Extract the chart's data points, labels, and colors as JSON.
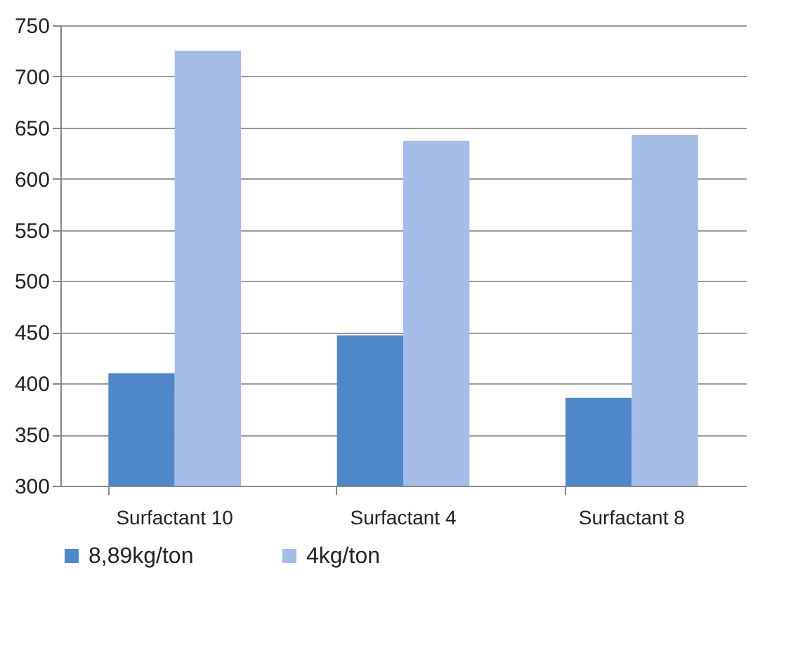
{
  "chart_data": {
    "type": "bar",
    "categories": [
      "Surfactant 10",
      "Surfactant 4",
      "Surfactant 8"
    ],
    "series": [
      {
        "name": "8,89kg/ton",
        "color": "#4f87c8",
        "values": [
          410,
          447,
          386
        ]
      },
      {
        "name": "4kg/ton",
        "color": "#a4bde6",
        "values": [
          725,
          637,
          643
        ]
      }
    ],
    "ylim": [
      300,
      750
    ],
    "yticks": [
      300,
      350,
      400,
      450,
      500,
      550,
      600,
      650,
      700,
      750
    ],
    "grid": "y",
    "legend": "bottom"
  }
}
